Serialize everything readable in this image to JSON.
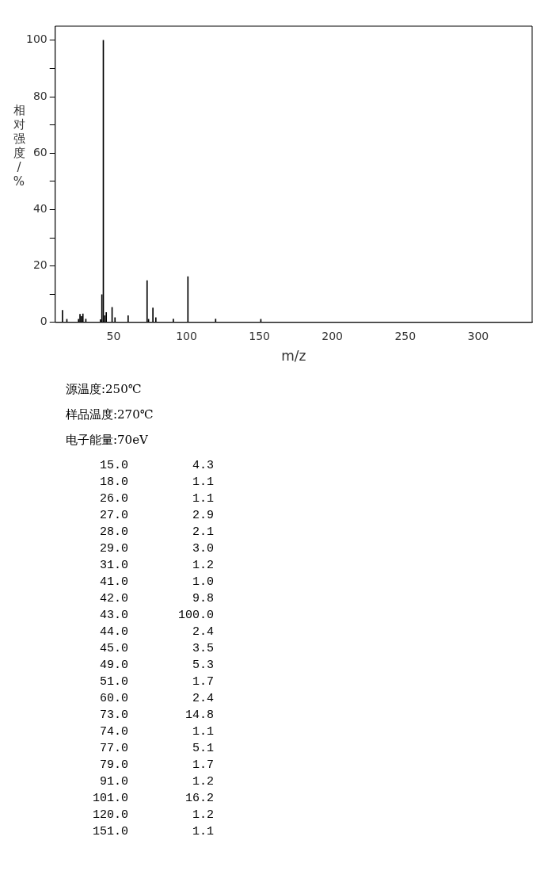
{
  "chart_data": {
    "type": "bar",
    "xlabel": "m/z",
    "ylabel": "相对强度/%",
    "x": [
      15,
      18,
      26,
      27,
      28,
      29,
      31,
      41,
      42,
      43,
      44,
      45,
      49,
      51,
      60,
      73,
      74,
      77,
      79,
      91,
      101,
      120,
      151
    ],
    "values": [
      4.3,
      1.1,
      1.1,
      2.9,
      2.1,
      3.0,
      1.2,
      1.0,
      9.8,
      100.0,
      2.4,
      3.5,
      5.3,
      1.7,
      2.4,
      14.8,
      1.1,
      5.1,
      1.7,
      1.2,
      16.2,
      1.2,
      1.1
    ],
    "color": "#000000",
    "xlim": [
      10,
      337
    ],
    "xticks": [
      50,
      100,
      150,
      200,
      250,
      300
    ],
    "ylim": [
      0,
      105
    ],
    "yticks": [
      0,
      {
        "value": 10,
        "label": null
      },
      20,
      {
        "value": 30,
        "label": null
      },
      40,
      {
        "value": 50,
        "label": null
      },
      60,
      {
        "value": 70,
        "label": null
      },
      80,
      {
        "value": 90,
        "label": null
      },
      100
    ],
    "grid": false,
    "legend": false,
    "annotations": [
      "源温度:250℃",
      "样品温度:270℃",
      "电子能量:70eV",
      "15.0 4.3",
      "18.0 1.1",
      "26.0 1.1",
      "27.0 2.9",
      "28.0 2.1",
      "29.0 3.0",
      "31.0 1.2",
      "41.0 1.0",
      "42.0 9.8",
      "43.0 100.0",
      "44.0 2.4",
      "45.0 3.5",
      "49.0 5.3",
      "51.0 1.7",
      "60.0 2.4",
      "73.0 14.8",
      "74.0 1.1",
      "77.0 5.1",
      "79.0 1.7",
      "91.0 1.2",
      "101.0 16.2",
      "120.0 1.2",
      "151.0 1.1"
    ]
  }
}
